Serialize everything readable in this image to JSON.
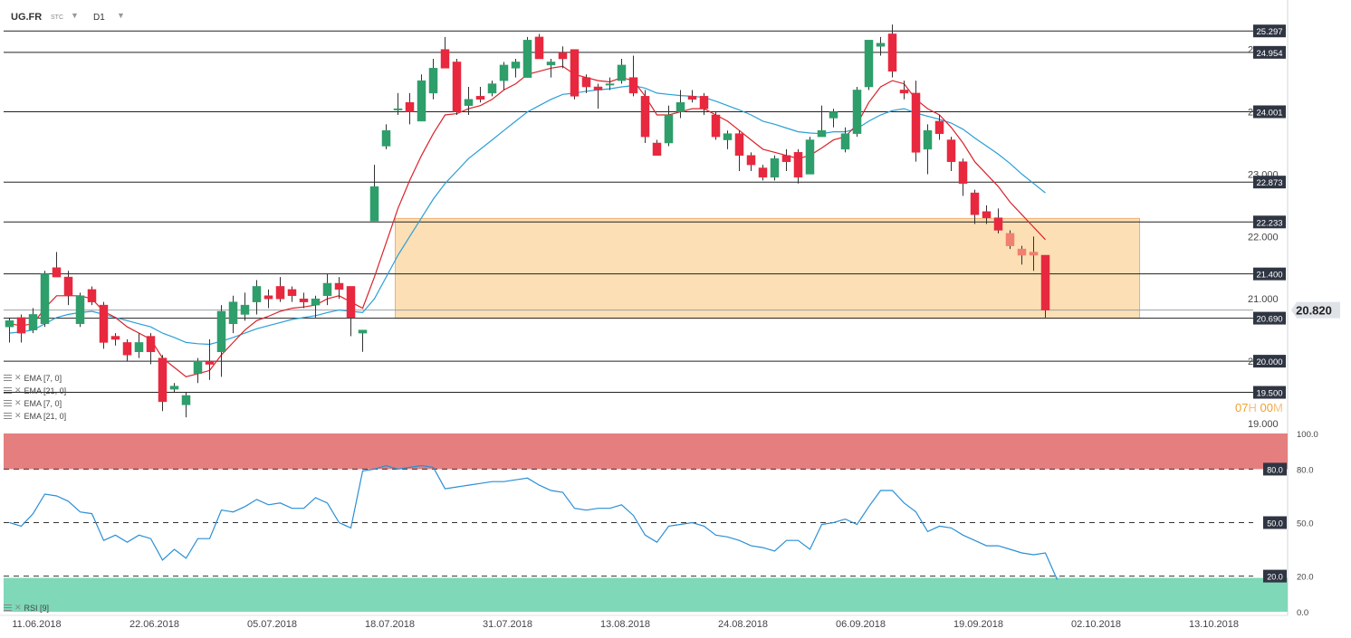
{
  "header": {
    "symbol": "UG.FR",
    "exchange": "STC",
    "timeframe": "D1",
    "dropdown_glyph": "▼"
  },
  "legends": [
    {
      "label": "EMA [7, 0]"
    },
    {
      "label": "EMA [21, 0]"
    },
    {
      "label": "EMA [7, 0]"
    },
    {
      "label": "EMA [21, 0]"
    }
  ],
  "rsi_legend": {
    "label": "RSI [9]"
  },
  "timer": {
    "hours": "07",
    "h_unit": "H",
    "minutes": "00",
    "m_unit": "M"
  },
  "colors": {
    "up": "#2e9e6b",
    "down": "#e8283e",
    "forecast": "#f08070",
    "ema7": "#d8232a",
    "ema21": "#2a9fd6",
    "zone": "#fbd9a8",
    "zone_edge": "#f0b070",
    "overbought": "#e57f7f",
    "oversold": "#7fd8b8",
    "rsi": "#2a8fd6",
    "current_price_bg": "#dfe3e8"
  },
  "chart_data": {
    "type": "candlestick",
    "price_axis": {
      "min": 19.0,
      "max": 25.3,
      "ticks": [
        19.0,
        20.0,
        21.0,
        22.0,
        23.0,
        24.0,
        25.0
      ],
      "tick_labels": [
        "19.000",
        "20.000",
        "21.000",
        "22.000",
        "23.000",
        "24.000",
        "25.000"
      ]
    },
    "x_labels": [
      {
        "i": 0,
        "label": "11.06.2018"
      },
      {
        "i": 10,
        "label": "22.06.2018"
      },
      {
        "i": 20,
        "label": "05.07.2018"
      },
      {
        "i": 30,
        "label": "18.07.2018"
      },
      {
        "i": 40,
        "label": "31.07.2018"
      },
      {
        "i": 50,
        "label": "13.08.2018"
      },
      {
        "i": 60,
        "label": "24.08.2018"
      },
      {
        "i": 70,
        "label": "06.09.2018"
      },
      {
        "i": 80,
        "label": "19.09.2018"
      },
      {
        "i": 90,
        "label": "02.10.2018"
      },
      {
        "i": 100,
        "label": "13.10.2018"
      }
    ],
    "levels": [
      {
        "value": 25.297,
        "label": "25.297"
      },
      {
        "value": 24.954,
        "label": "24.954"
      },
      {
        "value": 24.001,
        "label": "24.001"
      },
      {
        "value": 22.873,
        "label": "22.873"
      },
      {
        "value": 22.233,
        "label": "22.233"
      },
      {
        "value": 21.4,
        "label": "21.400"
      },
      {
        "value": 20.69,
        "label": "20.690"
      },
      {
        "value": 20.0,
        "label": "20.000"
      },
      {
        "value": 19.5,
        "label": "19.500"
      }
    ],
    "current_price": {
      "value": 20.82,
      "label": "20.820"
    },
    "zone": {
      "from_index": 33,
      "to_index": 96,
      "top": 22.29,
      "bottom": 20.69
    },
    "candles": [
      {
        "o": 20.55,
        "h": 20.7,
        "l": 20.3,
        "c": 20.65
      },
      {
        "o": 20.7,
        "h": 20.75,
        "l": 20.3,
        "c": 20.45
      },
      {
        "o": 20.5,
        "h": 20.85,
        "l": 20.45,
        "c": 20.75
      },
      {
        "o": 20.6,
        "h": 21.45,
        "l": 20.55,
        "c": 21.4
      },
      {
        "o": 21.5,
        "h": 21.75,
        "l": 21.35,
        "c": 21.35
      },
      {
        "o": 21.35,
        "h": 21.45,
        "l": 20.9,
        "c": 21.05
      },
      {
        "o": 20.6,
        "h": 21.1,
        "l": 20.55,
        "c": 21.05
      },
      {
        "o": 21.15,
        "h": 21.2,
        "l": 20.9,
        "c": 20.95
      },
      {
        "o": 20.9,
        "h": 20.95,
        "l": 20.2,
        "c": 20.3
      },
      {
        "o": 20.4,
        "h": 20.45,
        "l": 20.25,
        "c": 20.35
      },
      {
        "o": 20.3,
        "h": 20.35,
        "l": 20.0,
        "c": 20.1
      },
      {
        "o": 20.15,
        "h": 20.45,
        "l": 20.05,
        "c": 20.3
      },
      {
        "o": 20.4,
        "h": 20.45,
        "l": 19.95,
        "c": 20.15
      },
      {
        "o": 20.05,
        "h": 20.1,
        "l": 19.2,
        "c": 19.35
      },
      {
        "o": 19.55,
        "h": 19.65,
        "l": 19.5,
        "c": 19.6
      },
      {
        "o": 19.3,
        "h": 19.5,
        "l": 19.1,
        "c": 19.45
      },
      {
        "o": 19.8,
        "h": 20.05,
        "l": 19.65,
        "c": 20.0
      },
      {
        "o": 20.0,
        "h": 20.35,
        "l": 19.7,
        "c": 19.95
      },
      {
        "o": 20.15,
        "h": 20.9,
        "l": 19.75,
        "c": 20.8
      },
      {
        "o": 20.6,
        "h": 21.05,
        "l": 20.45,
        "c": 20.95
      },
      {
        "o": 20.75,
        "h": 21.1,
        "l": 20.65,
        "c": 20.9
      },
      {
        "o": 20.95,
        "h": 21.3,
        "l": 20.75,
        "c": 21.2
      },
      {
        "o": 21.05,
        "h": 21.15,
        "l": 20.85,
        "c": 21.0
      },
      {
        "o": 21.2,
        "h": 21.35,
        "l": 20.95,
        "c": 21.0
      },
      {
        "o": 21.15,
        "h": 21.2,
        "l": 20.95,
        "c": 21.05
      },
      {
        "o": 21.0,
        "h": 21.1,
        "l": 20.85,
        "c": 20.95
      },
      {
        "o": 20.9,
        "h": 21.05,
        "l": 20.7,
        "c": 21.0
      },
      {
        "o": 21.05,
        "h": 21.4,
        "l": 20.9,
        "c": 21.25
      },
      {
        "o": 21.25,
        "h": 21.35,
        "l": 21.0,
        "c": 21.15
      },
      {
        "o": 21.2,
        "h": 21.2,
        "l": 20.4,
        "c": 20.7
      },
      {
        "o": 20.45,
        "h": 20.5,
        "l": 20.15,
        "c": 20.5
      },
      {
        "o": 22.25,
        "h": 23.15,
        "l": 22.25,
        "c": 22.8
      },
      {
        "o": 23.45,
        "h": 23.8,
        "l": 23.4,
        "c": 23.7
      },
      {
        "o": 24.05,
        "h": 24.3,
        "l": 23.95,
        "c": 24.05
      },
      {
        "o": 24.15,
        "h": 24.3,
        "l": 23.8,
        "c": 24.0
      },
      {
        "o": 23.85,
        "h": 24.6,
        "l": 23.85,
        "c": 24.5
      },
      {
        "o": 24.3,
        "h": 24.85,
        "l": 24.2,
        "c": 24.7
      },
      {
        "o": 25.0,
        "h": 25.2,
        "l": 24.75,
        "c": 24.7
      },
      {
        "o": 24.8,
        "h": 24.85,
        "l": 23.95,
        "c": 24.0
      },
      {
        "o": 24.1,
        "h": 24.4,
        "l": 23.95,
        "c": 24.2
      },
      {
        "o": 24.25,
        "h": 24.4,
        "l": 24.15,
        "c": 24.2
      },
      {
        "o": 24.3,
        "h": 24.5,
        "l": 24.25,
        "c": 24.45
      },
      {
        "o": 24.5,
        "h": 24.8,
        "l": 24.35,
        "c": 24.75
      },
      {
        "o": 24.7,
        "h": 24.85,
        "l": 24.55,
        "c": 24.8
      },
      {
        "o": 24.55,
        "h": 25.2,
        "l": 24.55,
        "c": 25.15
      },
      {
        "o": 25.2,
        "h": 25.25,
        "l": 24.85,
        "c": 24.85
      },
      {
        "o": 24.75,
        "h": 24.85,
        "l": 24.55,
        "c": 24.8
      },
      {
        "o": 24.95,
        "h": 25.05,
        "l": 24.7,
        "c": 24.85
      },
      {
        "o": 25.0,
        "h": 25.0,
        "l": 24.2,
        "c": 24.25
      },
      {
        "o": 24.55,
        "h": 24.6,
        "l": 24.3,
        "c": 24.4
      },
      {
        "o": 24.4,
        "h": 24.45,
        "l": 24.05,
        "c": 24.35
      },
      {
        "o": 24.45,
        "h": 24.55,
        "l": 24.35,
        "c": 24.45
      },
      {
        "o": 24.5,
        "h": 24.85,
        "l": 24.45,
        "c": 24.75
      },
      {
        "o": 24.55,
        "h": 24.9,
        "l": 24.25,
        "c": 24.3
      },
      {
        "o": 24.25,
        "h": 24.35,
        "l": 23.5,
        "c": 23.6
      },
      {
        "o": 23.5,
        "h": 23.55,
        "l": 23.3,
        "c": 23.3
      },
      {
        "o": 23.5,
        "h": 24.1,
        "l": 23.45,
        "c": 23.95
      },
      {
        "o": 24.0,
        "h": 24.35,
        "l": 23.9,
        "c": 24.15
      },
      {
        "o": 24.25,
        "h": 24.35,
        "l": 24.15,
        "c": 24.2
      },
      {
        "o": 24.25,
        "h": 24.3,
        "l": 23.95,
        "c": 24.05
      },
      {
        "o": 23.95,
        "h": 24.0,
        "l": 23.55,
        "c": 23.6
      },
      {
        "o": 23.55,
        "h": 23.7,
        "l": 23.4,
        "c": 23.65
      },
      {
        "o": 23.65,
        "h": 23.7,
        "l": 23.05,
        "c": 23.3
      },
      {
        "o": 23.3,
        "h": 23.35,
        "l": 23.05,
        "c": 23.15
      },
      {
        "o": 23.1,
        "h": 23.15,
        "l": 22.9,
        "c": 22.95
      },
      {
        "o": 22.95,
        "h": 23.3,
        "l": 22.9,
        "c": 23.25
      },
      {
        "o": 23.3,
        "h": 23.4,
        "l": 23.05,
        "c": 23.2
      },
      {
        "o": 23.35,
        "h": 23.4,
        "l": 22.85,
        "c": 22.95
      },
      {
        "o": 23.0,
        "h": 23.6,
        "l": 23.0,
        "c": 23.55
      },
      {
        "o": 23.6,
        "h": 24.1,
        "l": 23.6,
        "c": 23.7
      },
      {
        "o": 23.9,
        "h": 24.05,
        "l": 23.75,
        "c": 24.0
      },
      {
        "o": 23.4,
        "h": 23.75,
        "l": 23.35,
        "c": 23.65
      },
      {
        "o": 23.65,
        "h": 24.4,
        "l": 23.6,
        "c": 24.35
      },
      {
        "o": 24.4,
        "h": 25.15,
        "l": 24.35,
        "c": 25.15
      },
      {
        "o": 25.05,
        "h": 25.2,
        "l": 24.9,
        "c": 25.1
      },
      {
        "o": 25.25,
        "h": 25.4,
        "l": 24.55,
        "c": 24.65
      },
      {
        "o": 24.35,
        "h": 24.5,
        "l": 24.2,
        "c": 24.3
      },
      {
        "o": 24.3,
        "h": 24.5,
        "l": 23.2,
        "c": 23.35
      },
      {
        "o": 23.4,
        "h": 23.8,
        "l": 23.0,
        "c": 23.7
      },
      {
        "o": 23.85,
        "h": 23.95,
        "l": 23.55,
        "c": 23.65
      },
      {
        "o": 23.55,
        "h": 23.6,
        "l": 23.05,
        "c": 23.2
      },
      {
        "o": 23.2,
        "h": 23.25,
        "l": 22.65,
        "c": 22.85
      },
      {
        "o": 22.7,
        "h": 22.75,
        "l": 22.2,
        "c": 22.35
      },
      {
        "o": 22.4,
        "h": 22.5,
        "l": 22.2,
        "c": 22.3
      },
      {
        "o": 22.3,
        "h": 22.45,
        "l": 22.05,
        "c": 22.1
      },
      {
        "o": 22.05,
        "h": 22.1,
        "l": 21.8,
        "c": 21.85,
        "forecast": true
      },
      {
        "o": 21.8,
        "h": 21.85,
        "l": 21.55,
        "c": 21.7,
        "forecast": true
      },
      {
        "o": 21.7,
        "h": 22.0,
        "l": 21.45,
        "c": 21.75,
        "forecast": true
      },
      {
        "o": 21.7,
        "h": 21.7,
        "l": 20.7,
        "c": 20.82
      }
    ],
    "ema7": [
      20.6,
      20.57,
      20.6,
      20.85,
      21.05,
      21.05,
      21.05,
      21.0,
      20.8,
      20.7,
      20.55,
      20.45,
      20.35,
      20.05,
      19.9,
      19.75,
      19.8,
      19.85,
      20.1,
      20.3,
      20.5,
      20.65,
      20.72,
      20.8,
      20.85,
      20.87,
      20.9,
      21.0,
      21.05,
      20.95,
      20.85,
      21.35,
      21.9,
      22.45,
      22.9,
      23.3,
      23.65,
      23.95,
      23.97,
      24.05,
      24.1,
      24.2,
      24.35,
      24.45,
      24.6,
      24.65,
      24.7,
      24.73,
      24.6,
      24.55,
      24.5,
      24.48,
      24.55,
      24.5,
      24.25,
      23.95,
      23.95,
      24.0,
      24.05,
      24.05,
      23.95,
      23.85,
      23.7,
      23.55,
      23.4,
      23.35,
      23.3,
      23.25,
      23.3,
      23.42,
      23.55,
      23.6,
      23.8,
      24.15,
      24.4,
      24.5,
      24.45,
      24.2,
      24.05,
      23.95,
      23.75,
      23.5,
      23.2,
      23.0,
      22.8,
      22.55,
      22.35,
      22.15,
      21.95
    ],
    "ema21": [
      20.45,
      20.47,
      20.5,
      20.6,
      20.7,
      20.75,
      20.78,
      20.8,
      20.75,
      20.7,
      20.65,
      20.6,
      20.55,
      20.45,
      20.38,
      20.3,
      20.28,
      20.27,
      20.32,
      20.38,
      20.45,
      20.52,
      20.57,
      20.62,
      20.67,
      20.7,
      20.73,
      20.78,
      20.82,
      20.8,
      20.78,
      21.0,
      21.35,
      21.7,
      22.0,
      22.3,
      22.6,
      22.85,
      23.05,
      23.25,
      23.4,
      23.55,
      23.7,
      23.85,
      24.0,
      24.1,
      24.2,
      24.28,
      24.3,
      24.33,
      24.35,
      24.37,
      24.4,
      24.42,
      24.38,
      24.3,
      24.28,
      24.26,
      24.25,
      24.23,
      24.17,
      24.1,
      24.03,
      23.95,
      23.85,
      23.8,
      23.74,
      23.68,
      23.66,
      23.65,
      23.68,
      23.68,
      23.73,
      23.85,
      23.95,
      24.02,
      24.05,
      23.98,
      23.93,
      23.88,
      23.82,
      23.72,
      23.58,
      23.45,
      23.32,
      23.17,
      23.0,
      22.85,
      22.7
    ],
    "rsi": {
      "min": 0,
      "max": 100,
      "ticks": [
        {
          "value": 100,
          "label": "100.0"
        },
        {
          "value": 80,
          "label": "80.0"
        },
        {
          "value": 50,
          "label": "50.0"
        },
        {
          "value": 20,
          "label": "20.0"
        },
        {
          "value": 0,
          "label": "0.0"
        }
      ],
      "overbought": 80,
      "oversold": 20,
      "values": [
        50,
        48,
        55,
        66,
        65,
        62,
        56,
        55,
        40,
        43,
        39,
        43,
        41,
        29,
        35,
        30,
        41,
        41,
        57,
        56,
        59,
        63,
        60,
        61,
        58,
        58,
        64,
        61,
        50,
        47,
        79,
        80,
        82,
        80,
        81,
        82,
        81,
        69,
        70,
        71,
        72,
        73,
        73,
        74,
        75,
        71,
        68,
        67,
        58,
        57,
        58,
        58,
        60,
        54,
        43,
        39,
        48,
        49,
        50,
        48,
        43,
        42,
        40,
        37,
        36,
        34,
        40,
        40,
        35,
        49,
        50,
        52,
        49,
        59,
        68,
        68,
        61,
        56,
        45,
        48,
        47,
        43,
        40,
        37,
        37,
        35,
        33,
        32,
        33,
        18
      ],
      "series_label": "RSI [9]"
    }
  }
}
